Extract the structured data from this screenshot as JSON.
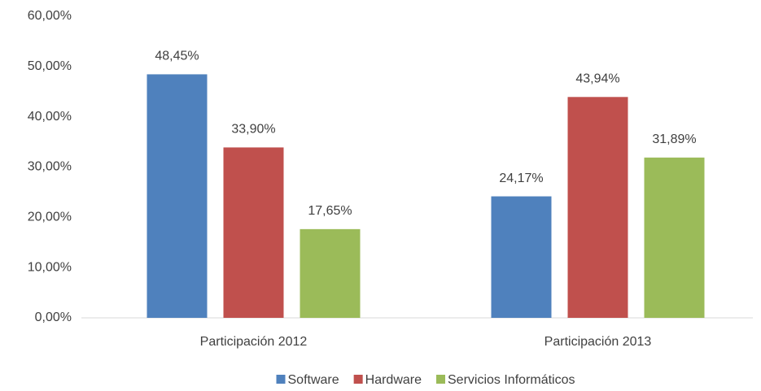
{
  "chart_data": {
    "type": "bar",
    "categories": [
      "Participación 2012",
      "Participación 2013"
    ],
    "series": [
      {
        "name": "Software",
        "color": "#4f81bd",
        "values": [
          48.45,
          24.17
        ],
        "value_labels": [
          "48,45%",
          "24,17%"
        ]
      },
      {
        "name": "Hardware",
        "color": "#c0504d",
        "values": [
          33.9,
          43.94
        ],
        "value_labels": [
          "33,90%",
          "43,94%"
        ]
      },
      {
        "name": "Servicios Informáticos",
        "color": "#9bbb59",
        "values": [
          17.65,
          31.89
        ],
        "value_labels": [
          "17,65%",
          "31,89%"
        ]
      }
    ],
    "ylim": [
      0,
      60
    ],
    "yticks": [
      {
        "value": 0,
        "label": "0,00%"
      },
      {
        "value": 10,
        "label": "10,00%"
      },
      {
        "value": 20,
        "label": "20,00%"
      },
      {
        "value": 30,
        "label": "30,00%"
      },
      {
        "value": 40,
        "label": "40,00%"
      },
      {
        "value": 50,
        "label": "50,00%"
      },
      {
        "value": 60,
        "label": "60,00%"
      }
    ],
    "grid": false,
    "legend": "bottom"
  }
}
